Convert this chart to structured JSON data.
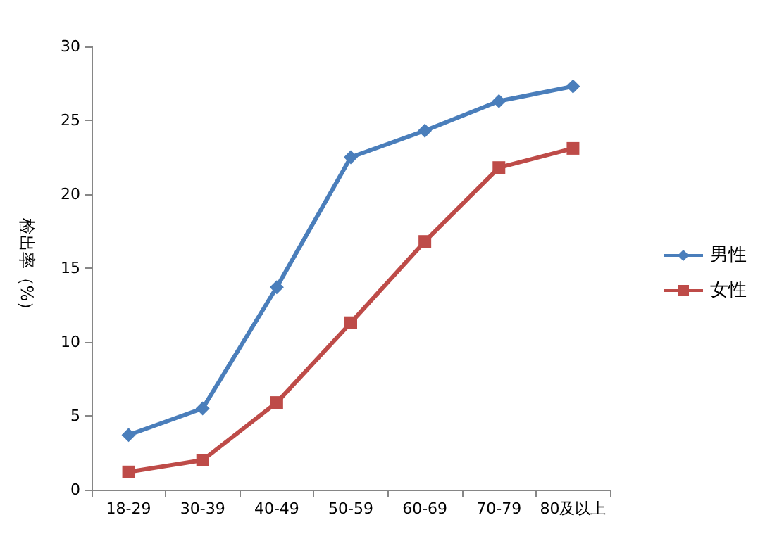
{
  "chart_data": {
    "type": "line",
    "ylabel": "检出率（%）",
    "categories": [
      "18-29",
      "30-39",
      "40-49",
      "50-59",
      "60-69",
      "70-79",
      "80及以上"
    ],
    "series": [
      {
        "name": "男性",
        "color": "#4a7ebb",
        "marker": "diamond",
        "values": [
          3.7,
          5.5,
          13.7,
          22.5,
          24.3,
          26.3,
          27.3
        ]
      },
      {
        "name": "女性",
        "color": "#be4b48",
        "marker": "square",
        "values": [
          1.2,
          2.0,
          5.9,
          11.3,
          16.8,
          21.8,
          23.1
        ]
      }
    ],
    "ylim": [
      0,
      30
    ],
    "yticks": [
      0,
      5,
      10,
      15,
      20,
      25,
      30
    ],
    "grid": false,
    "legend": "right"
  }
}
